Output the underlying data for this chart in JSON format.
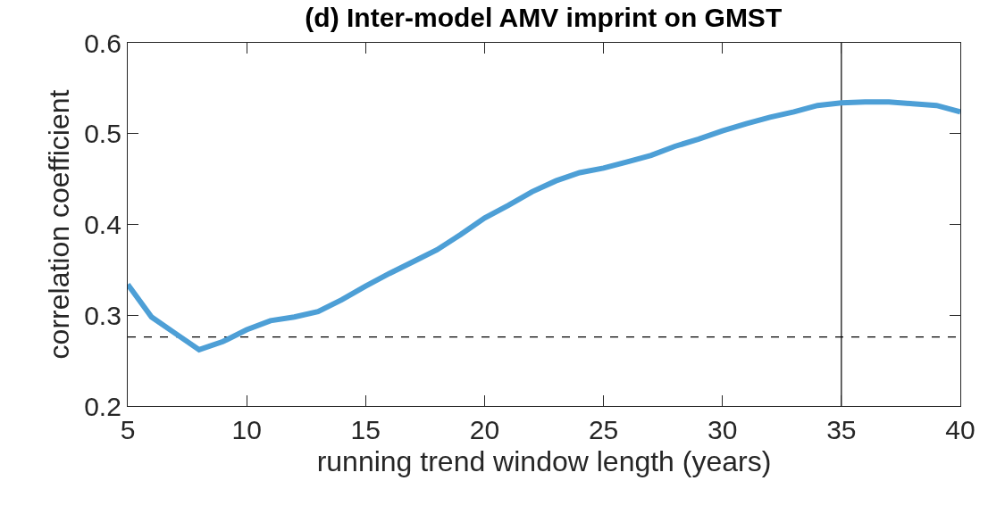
{
  "chart_data": {
    "type": "line",
    "title": "(d) Inter-model AMV imprint on GMST",
    "xlabel": "running trend window length (years)",
    "ylabel": "correlation coefficient",
    "x": [
      5,
      6,
      7,
      8,
      9,
      10,
      11,
      12,
      13,
      14,
      15,
      16,
      17,
      18,
      19,
      20,
      21,
      22,
      23,
      24,
      25,
      26,
      27,
      28,
      29,
      30,
      31,
      32,
      33,
      34,
      35,
      36,
      37,
      38,
      39,
      40
    ],
    "series": [
      {
        "color": "#4d9fd6",
        "values": [
          0.334,
          0.298,
          0.28,
          0.262,
          0.271,
          0.284,
          0.294,
          0.298,
          0.304,
          0.317,
          0.332,
          0.346,
          0.359,
          0.372,
          0.389,
          0.407,
          0.421,
          0.436,
          0.448,
          0.457,
          0.462,
          0.469,
          0.476,
          0.486,
          0.494,
          0.503,
          0.511,
          0.518,
          0.524,
          0.531,
          0.534,
          0.535,
          0.535,
          0.533,
          0.531,
          0.524
        ]
      }
    ],
    "xlim": [
      5,
      40
    ],
    "xticks": [
      5,
      10,
      15,
      20,
      25,
      30,
      35,
      40
    ],
    "ylim": [
      0.2,
      0.6
    ],
    "yticks": [
      0.2,
      0.3,
      0.4,
      0.5,
      0.6
    ],
    "ref_lines": [
      {
        "axis": "y",
        "value": 0.276,
        "color": "#000000",
        "line_style": "dashed"
      },
      {
        "axis": "x",
        "value": 35,
        "color": "#000000",
        "line_style": "solid"
      }
    ],
    "grid": false,
    "marker": "none",
    "line_style": "solid"
  }
}
